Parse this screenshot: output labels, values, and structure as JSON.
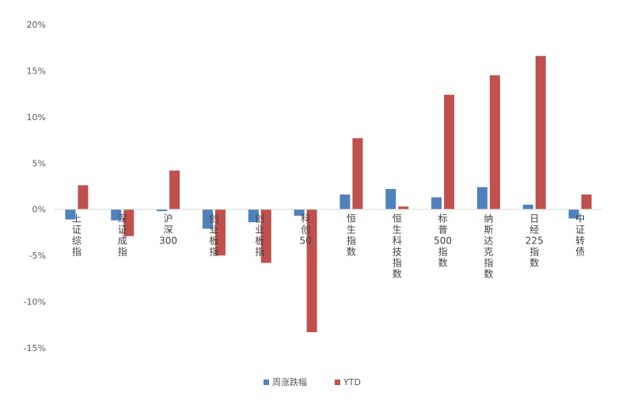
{
  "chart_data": {
    "type": "bar",
    "categories": [
      "上证综指",
      "深证成指",
      "沪深300",
      "创业板指",
      "创业板指",
      "科创50",
      "恒生指数",
      "恒生科技指数",
      "标普500指数",
      "纳斯达克指数",
      "日经225指数",
      "中证转债"
    ],
    "series": [
      {
        "name": "周涨跌幅",
        "color": "#4f81bd",
        "values": [
          -1.1,
          -1.2,
          -0.2,
          -2.1,
          -1.4,
          -0.7,
          1.6,
          2.2,
          1.3,
          2.4,
          0.5,
          -1.0
        ]
      },
      {
        "name": "YTD",
        "color": "#c0504d",
        "values": [
          2.6,
          -2.9,
          4.2,
          -5.0,
          -5.8,
          -13.3,
          7.7,
          0.3,
          12.4,
          14.5,
          16.6,
          1.6
        ]
      }
    ],
    "ylim": [
      -15,
      20
    ],
    "yticks": [
      20,
      15,
      10,
      5,
      0,
      -5,
      -10,
      -15
    ],
    "ytick_labels": [
      "20%",
      "15%",
      "10%",
      "5%",
      "0%",
      "-5%",
      "-10%",
      "-15%"
    ],
    "title": "",
    "xlabel": "",
    "ylabel": "",
    "grid": false,
    "legend_position": "bottom"
  }
}
